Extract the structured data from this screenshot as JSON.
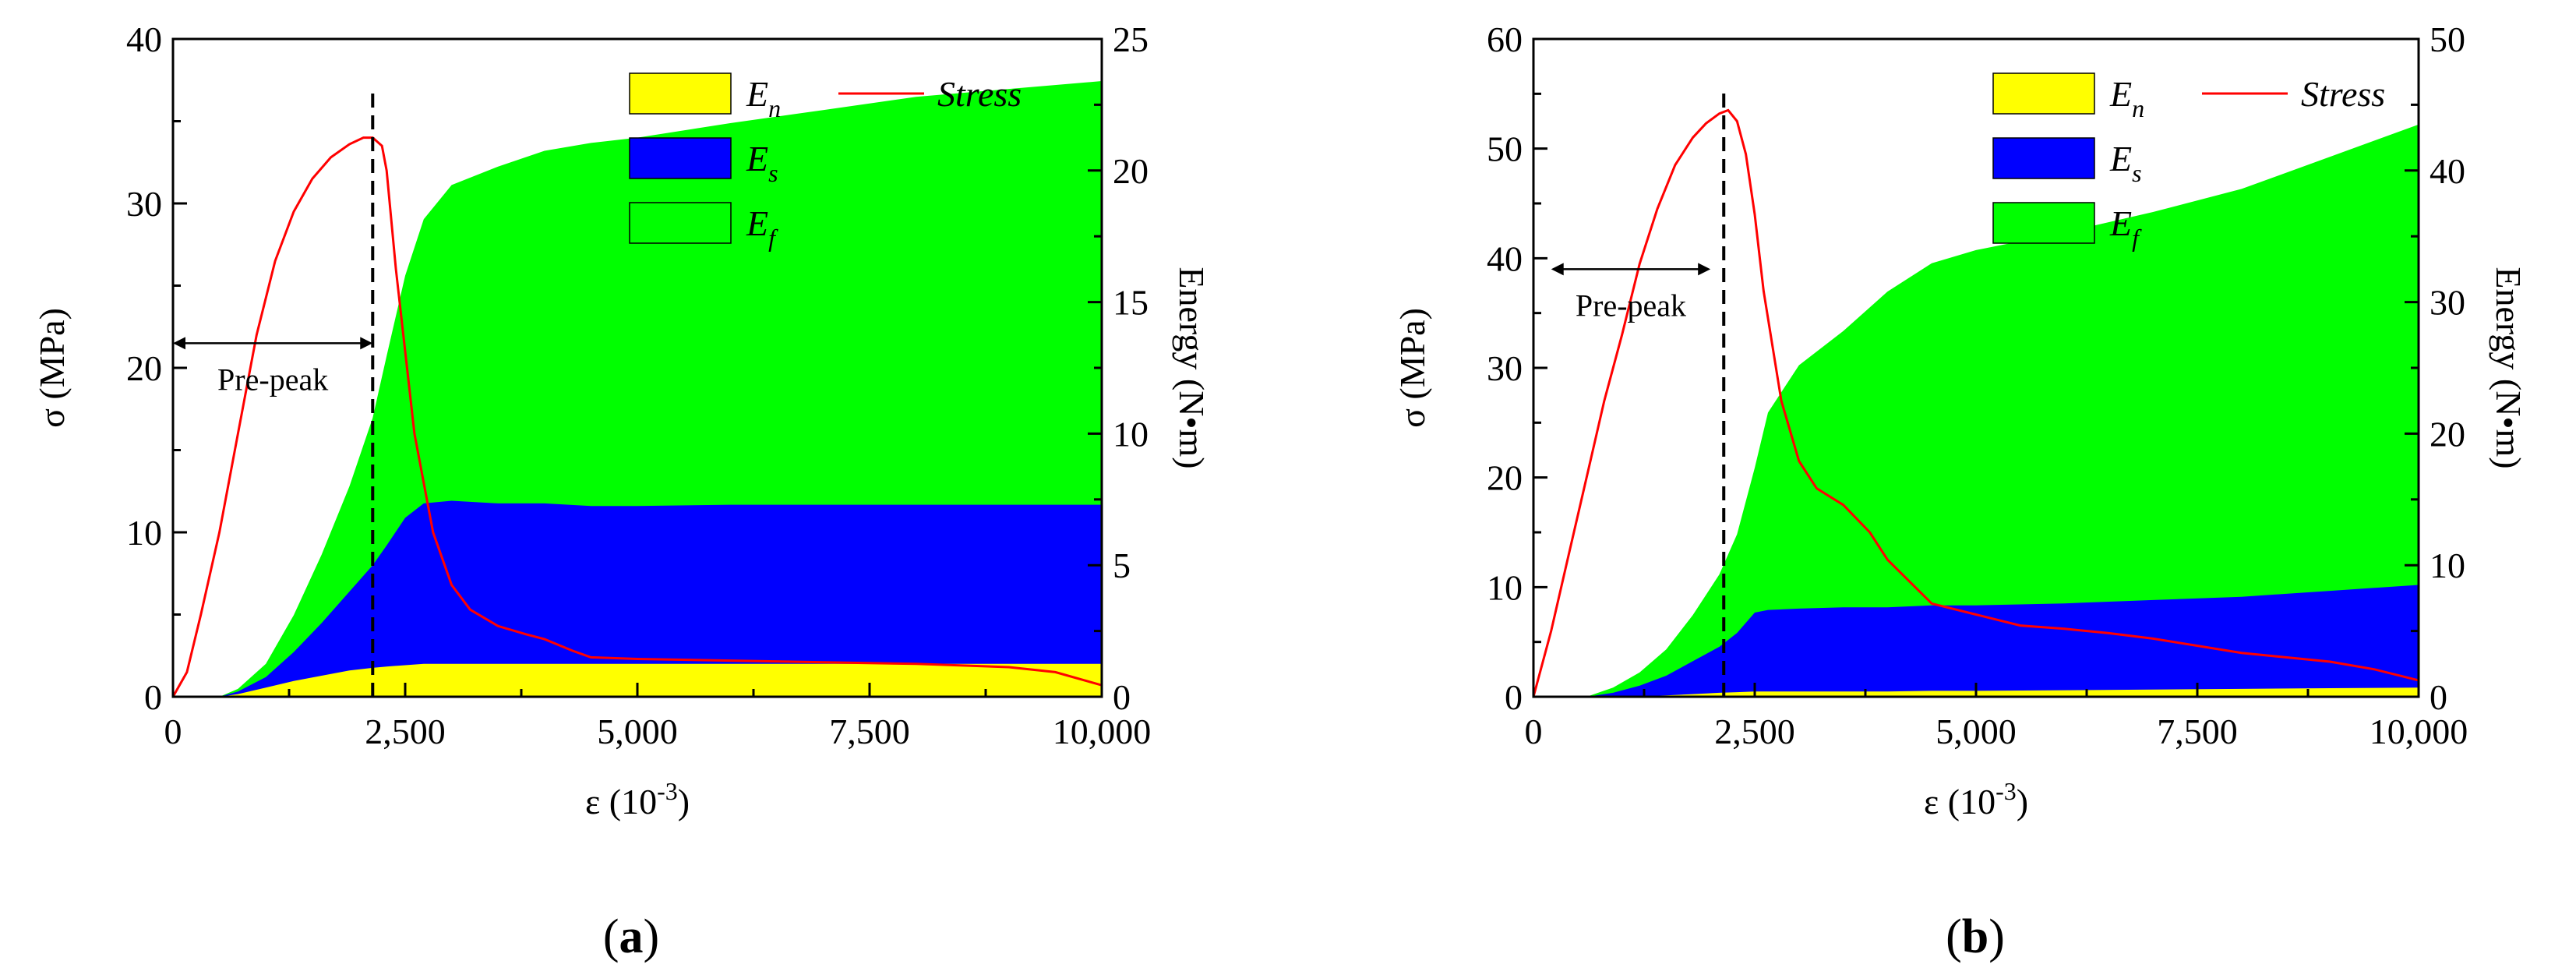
{
  "chart_data": [
    {
      "type": "area",
      "panel": "a",
      "caption_open": "(",
      "caption_letter": "a",
      "caption_close": ")",
      "xlabel": "ε (10",
      "xlabel_sup": "-3",
      "xlabel_close": ")",
      "ylabel": "σ (MPa)",
      "y2label": "Energy (N•m)",
      "xlim": [
        0,
        10000
      ],
      "ylim": [
        0,
        40
      ],
      "y2lim": [
        0,
        25
      ],
      "xticks": [
        0,
        2500,
        5000,
        7500,
        10000
      ],
      "xtick_labels": [
        "0",
        "2,500",
        "5,000",
        "7,500",
        "10,000"
      ],
      "yticks": [
        0,
        10,
        20,
        30,
        40
      ],
      "ytick_labels": [
        "0",
        "10",
        "20",
        "30",
        "40"
      ],
      "y2ticks": [
        0,
        5,
        10,
        15,
        20,
        25
      ],
      "y2tick_labels": [
        "0",
        "5",
        "10",
        "15",
        "20",
        "25"
      ],
      "peak_strain": 2150,
      "annotation": "Pre-peak",
      "annotation_range": [
        0,
        2150
      ],
      "legend": [
        {
          "key": "En",
          "label": "E",
          "sub": "n",
          "color": "#ffff00"
        },
        {
          "key": "Es",
          "label": "E",
          "sub": "s",
          "color": "#0000ff"
        },
        {
          "key": "Ef",
          "label": "E",
          "sub": "f",
          "color": "#00ff00"
        },
        {
          "key": "stress",
          "label": "Stress",
          "color": "#ff0000"
        }
      ],
      "x": [
        0,
        500,
        700,
        1000,
        1300,
        1600,
        1900,
        2150,
        2300,
        2500,
        2700,
        3000,
        3500,
        4000,
        4500,
        5000,
        6000,
        7000,
        8000,
        9000,
        10000
      ],
      "series": [
        {
          "name": "En",
          "color": "#ffff00",
          "values": [
            0,
            0,
            0.1,
            0.35,
            0.6,
            0.8,
            1.0,
            1.1,
            1.15,
            1.2,
            1.25,
            1.25,
            1.25,
            1.25,
            1.25,
            1.25,
            1.25,
            1.25,
            1.25,
            1.25,
            1.25
          ]
        },
        {
          "name": "Es",
          "color": "#0000ff",
          "values": [
            0,
            0,
            0.1,
            0.4,
            1.1,
            2.0,
            3.0,
            3.9,
            4.6,
            5.6,
            6.1,
            6.2,
            6.1,
            6.1,
            6.0,
            6.0,
            6.05,
            6.05,
            6.05,
            6.05,
            6.05
          ]
        },
        {
          "name": "Ef",
          "color": "#00ff00",
          "values": [
            0,
            0,
            0.1,
            0.5,
            1.4,
            2.6,
            4.0,
            5.6,
            7.2,
            9.2,
            10.8,
            12.0,
            12.8,
            13.4,
            13.8,
            14.0,
            14.5,
            15.0,
            15.5,
            15.8,
            16.1
          ]
        }
      ],
      "stress": {
        "name": "Stress",
        "color": "#ff0000",
        "x": [
          0,
          150,
          300,
          500,
          700,
          900,
          1100,
          1300,
          1500,
          1700,
          1900,
          2050,
          2150,
          2250,
          2300,
          2400,
          2500,
          2600,
          2800,
          3000,
          3200,
          3500,
          3800,
          4000,
          4300,
          4500,
          5000,
          6000,
          7000,
          8000,
          9000,
          9500,
          10000
        ],
        "values": [
          0,
          1.5,
          5,
          10,
          16,
          22,
          26.5,
          29.5,
          31.5,
          32.8,
          33.6,
          34,
          34,
          33.5,
          32,
          26,
          21,
          16,
          10,
          6.8,
          5.3,
          4.3,
          3.8,
          3.5,
          2.8,
          2.4,
          2.3,
          2.2,
          2.1,
          2.0,
          1.8,
          1.5,
          0.7
        ]
      }
    },
    {
      "type": "area",
      "panel": "b",
      "caption_open": "(",
      "caption_letter": "b",
      "caption_close": ")",
      "xlabel": "ε (10",
      "xlabel_sup": "-3",
      "xlabel_close": ")",
      "ylabel": "σ (MPa)",
      "y2label": "Energy (N•m)",
      "xlim": [
        0,
        10000
      ],
      "ylim": [
        0,
        60
      ],
      "y2lim": [
        0,
        50
      ],
      "xticks": [
        0,
        2500,
        5000,
        7500,
        10000
      ],
      "xtick_labels": [
        "0",
        "2,500",
        "5,000",
        "7,500",
        "10,000"
      ],
      "yticks": [
        0,
        10,
        20,
        30,
        40,
        50,
        60
      ],
      "ytick_labels": [
        "0",
        "10",
        "20",
        "30",
        "40",
        "50",
        "60"
      ],
      "y2ticks": [
        0,
        10,
        20,
        30,
        40,
        50
      ],
      "y2tick_labels": [
        "0",
        "10",
        "20",
        "30",
        "40",
        "50"
      ],
      "peak_strain": 2150,
      "annotation": "Pre-peak",
      "annotation_range": [
        200,
        2000
      ],
      "legend": [
        {
          "key": "En",
          "label": "E",
          "sub": "n",
          "color": "#ffff00"
        },
        {
          "key": "Es",
          "label": "E",
          "sub": "s",
          "color": "#0000ff"
        },
        {
          "key": "Ef",
          "label": "E",
          "sub": "f",
          "color": "#00ff00"
        },
        {
          "key": "stress",
          "label": "Stress",
          "color": "#ff0000"
        }
      ],
      "x": [
        0,
        600,
        900,
        1200,
        1500,
        1800,
        2100,
        2300,
        2500,
        2650,
        3000,
        3500,
        4000,
        4500,
        5000,
        6000,
        7000,
        8000,
        9000,
        10000
      ],
      "series": [
        {
          "name": "En",
          "color": "#ffff00",
          "values": [
            0,
            0,
            0,
            0.05,
            0.1,
            0.2,
            0.3,
            0.35,
            0.4,
            0.4,
            0.4,
            0.4,
            0.4,
            0.45,
            0.45,
            0.5,
            0.55,
            0.6,
            0.65,
            0.7
          ]
        },
        {
          "name": "Es",
          "color": "#0000ff",
          "values": [
            0,
            0,
            0.3,
            0.8,
            1.5,
            2.5,
            3.5,
            4.5,
            6.0,
            6.2,
            6.3,
            6.4,
            6.4,
            6.5,
            6.5,
            6.6,
            6.8,
            7.0,
            7.4,
            7.8
          ]
        },
        {
          "name": "Ef",
          "color": "#00ff00",
          "values": [
            0,
            0,
            0.4,
            1.0,
            2.0,
            3.5,
            5.5,
            7.5,
            11.0,
            15.0,
            18.5,
            21.0,
            24.0,
            26.0,
            27.0,
            28.2,
            29.5,
            31.0,
            33.0,
            35.0
          ]
        }
      ],
      "stress": {
        "name": "Stress",
        "color": "#ff0000",
        "x": [
          0,
          200,
          400,
          600,
          800,
          1000,
          1200,
          1400,
          1600,
          1800,
          1950,
          2100,
          2200,
          2300,
          2400,
          2500,
          2600,
          2800,
          3000,
          3200,
          3500,
          3800,
          4000,
          4500,
          5000,
          5500,
          6000,
          6500,
          7000,
          8000,
          9000,
          9500,
          10000
        ],
        "values": [
          0,
          6,
          13,
          20,
          27,
          33,
          39.5,
          44.5,
          48.5,
          51,
          52.3,
          53.2,
          53.5,
          52.5,
          49.5,
          44,
          37,
          27,
          21.5,
          19,
          17.5,
          15,
          12.5,
          8.5,
          7.5,
          6.5,
          6.2,
          5.8,
          5.3,
          4.0,
          3.2,
          2.5,
          1.5
        ]
      }
    }
  ]
}
